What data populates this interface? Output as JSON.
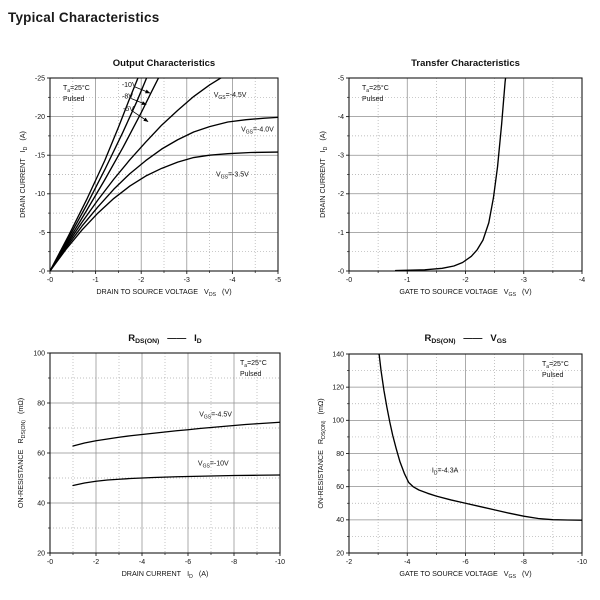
{
  "page": {
    "title": "Typical Characteristics"
  },
  "chart_data": [
    {
      "id": "output-characteristics",
      "type": "line",
      "title": "Output Characteristics",
      "xlabel": "DRAIN TO SOURCE VOLTAGE   V~DS~   (V)",
      "ylabel": "DRAIN CURRENT   I~D~   (A)",
      "xlim": [
        0,
        -5
      ],
      "ylim": [
        0,
        -25
      ],
      "xticks": [
        {
          "v": 0,
          "l": "-0"
        },
        {
          "v": -1,
          "l": "-1"
        },
        {
          "v": -2,
          "l": "-2"
        },
        {
          "v": -3,
          "l": "-3"
        },
        {
          "v": -4,
          "l": "-4"
        },
        {
          "v": -5,
          "l": "-5"
        }
      ],
      "yticks": [
        {
          "v": 0,
          "l": "-0"
        },
        {
          "v": -5,
          "l": "-5"
        },
        {
          "v": -10,
          "l": "-10"
        },
        {
          "v": -15,
          "l": "-15"
        },
        {
          "v": -20,
          "l": "-20"
        },
        {
          "v": -25,
          "l": "-25"
        }
      ],
      "xminor": 0.5,
      "yminor": 2.5,
      "grid": true,
      "legend": "none",
      "note": {
        "lines": [
          "T~a~=25°C",
          "Pulsed"
        ],
        "corner": "tl"
      },
      "series": [
        {
          "name": "VGS=-10V",
          "points": [
            [
              0,
              0
            ],
            [
              -0.4,
              -4.5
            ],
            [
              -0.8,
              -9.2
            ],
            [
              -1.2,
              -14.3
            ],
            [
              -1.5,
              -18.6
            ],
            [
              -1.75,
              -22.4
            ],
            [
              -1.97,
              -25.6
            ]
          ]
        },
        {
          "name": "VGS=-8V",
          "points": [
            [
              0,
              0
            ],
            [
              -0.4,
              -4.2
            ],
            [
              -0.8,
              -8.5
            ],
            [
              -1.2,
              -13.1
            ],
            [
              -1.6,
              -18.0
            ],
            [
              -1.9,
              -21.9
            ],
            [
              -2.16,
              -25.6
            ]
          ]
        },
        {
          "name": "VGS=-5V",
          "points": [
            [
              0,
              0
            ],
            [
              -0.4,
              -3.9
            ],
            [
              -0.8,
              -7.8
            ],
            [
              -1.2,
              -11.8
            ],
            [
              -1.6,
              -16.0
            ],
            [
              -2.0,
              -20.5
            ],
            [
              -2.2,
              -22.9
            ],
            [
              -2.43,
              -25.6
            ]
          ]
        },
        {
          "name": "VGS=-4.5V",
          "points": [
            [
              0,
              0
            ],
            [
              -0.35,
              -3.2
            ],
            [
              -0.7,
              -6.3
            ],
            [
              -1.05,
              -9.2
            ],
            [
              -1.4,
              -11.9
            ],
            [
              -1.75,
              -14.4
            ],
            [
              -2.1,
              -16.7
            ],
            [
              -2.45,
              -18.9
            ],
            [
              -2.8,
              -20.8
            ],
            [
              -3.15,
              -22.6
            ],
            [
              -3.5,
              -24.1
            ],
            [
              -3.8,
              -25.2
            ],
            [
              -4.0,
              -25.9
            ]
          ]
        },
        {
          "name": "VGS=-4.0V",
          "points": [
            [
              0,
              0
            ],
            [
              -0.35,
              -3.0
            ],
            [
              -0.7,
              -5.8
            ],
            [
              -1.05,
              -8.3
            ],
            [
              -1.4,
              -10.6
            ],
            [
              -1.75,
              -12.6
            ],
            [
              -2.1,
              -14.3
            ],
            [
              -2.45,
              -15.8
            ],
            [
              -2.8,
              -17.0
            ],
            [
              -3.15,
              -18.0
            ],
            [
              -3.5,
              -18.7
            ],
            [
              -3.9,
              -19.3
            ],
            [
              -4.3,
              -19.6
            ],
            [
              -4.7,
              -19.8
            ],
            [
              -5,
              -19.9
            ]
          ]
        },
        {
          "name": "VGS=-3.5V",
          "points": [
            [
              0,
              0
            ],
            [
              -0.35,
              -2.8
            ],
            [
              -0.7,
              -5.3
            ],
            [
              -1.05,
              -7.5
            ],
            [
              -1.4,
              -9.4
            ],
            [
              -1.75,
              -11.0
            ],
            [
              -2.1,
              -12.3
            ],
            [
              -2.45,
              -13.3
            ],
            [
              -2.8,
              -14.1
            ],
            [
              -3.15,
              -14.7
            ],
            [
              -3.5,
              -15.0
            ],
            [
              -3.9,
              -15.2
            ],
            [
              -4.4,
              -15.35
            ],
            [
              -5,
              -15.4
            ]
          ]
        }
      ],
      "labels": [
        {
          "text": "-10V",
          "x": -1.9,
          "y": -24.15,
          "anchor": "end",
          "arrow": [
            -1.86,
            -23.85,
            -2.19,
            -23.05
          ]
        },
        {
          "text": "-8V",
          "x": -1.82,
          "y": -22.65,
          "anchor": "end",
          "arrow": [
            -1.78,
            -22.35,
            -2.11,
            -21.55
          ]
        },
        {
          "text": "-5V",
          "x": -1.84,
          "y": -21.05,
          "anchor": "end",
          "arrow": [
            -1.8,
            -20.75,
            -2.15,
            -19.35
          ]
        },
        {
          "text": "V~GS~=-4.5V",
          "x": -3.95,
          "y": -22.85,
          "anchor": "middle"
        },
        {
          "text": "V~GS~=-4.0V",
          "x": -4.55,
          "y": -18.35,
          "anchor": "middle"
        },
        {
          "text": "V~GS~=-3.5V",
          "x": -4.0,
          "y": -12.55,
          "anchor": "middle"
        }
      ]
    },
    {
      "id": "transfer-characteristics",
      "type": "line",
      "title": "Transfer Characteristics",
      "xlabel": "GATE TO SOURCE VOLTAGE   V~GS~   (V)",
      "ylabel": "DRAIN CURRENT   I~D~   (A)",
      "xlim": [
        0,
        -4
      ],
      "ylim": [
        0,
        -5
      ],
      "xticks": [
        {
          "v": 0,
          "l": "-0"
        },
        {
          "v": -1,
          "l": "-1"
        },
        {
          "v": -2,
          "l": "-2"
        },
        {
          "v": -3,
          "l": "-3"
        },
        {
          "v": -4,
          "l": "-4"
        }
      ],
      "yticks": [
        {
          "v": 0,
          "l": "-0"
        },
        {
          "v": -1,
          "l": "-1"
        },
        {
          "v": -2,
          "l": "-2"
        },
        {
          "v": -3,
          "l": "-3"
        },
        {
          "v": -4,
          "l": "-4"
        },
        {
          "v": -5,
          "l": "-5"
        }
      ],
      "xminor": 0.5,
      "yminor": 0.5,
      "grid": true,
      "legend": "none",
      "note": {
        "lines": [
          "T~a~=25°C",
          "Pulsed"
        ],
        "corner": "tl"
      },
      "series": [
        {
          "name": "ID-vs-VGS",
          "points": [
            [
              -0.8,
              -0.01
            ],
            [
              -1.3,
              -0.03
            ],
            [
              -1.6,
              -0.07
            ],
            [
              -1.8,
              -0.13
            ],
            [
              -1.95,
              -0.22
            ],
            [
              -2.1,
              -0.38
            ],
            [
              -2.2,
              -0.55
            ],
            [
              -2.3,
              -0.8
            ],
            [
              -2.4,
              -1.25
            ],
            [
              -2.48,
              -1.9
            ],
            [
              -2.55,
              -2.7
            ],
            [
              -2.62,
              -3.8
            ],
            [
              -2.68,
              -4.9
            ],
            [
              -2.72,
              -5.4
            ]
          ]
        }
      ],
      "labels": []
    },
    {
      "id": "rdson-vs-id",
      "type": "line",
      "title": "R~DS(ON)~   ——   I~D~",
      "xlabel": "DRAIN CURRENT   I~D~   (A)",
      "ylabel": "ON-RESISTANCE   R~DS(ON)~   (mΩ)",
      "xlim": [
        0,
        -10
      ],
      "ylim": [
        20,
        100
      ],
      "xticks": [
        {
          "v": 0,
          "l": "-0"
        },
        {
          "v": -2,
          "l": "-2"
        },
        {
          "v": -4,
          "l": "-4"
        },
        {
          "v": -6,
          "l": "-6"
        },
        {
          "v": -8,
          "l": "-8"
        },
        {
          "v": -10,
          "l": "-10"
        }
      ],
      "yticks": [
        {
          "v": 20,
          "l": "20"
        },
        {
          "v": 40,
          "l": "40"
        },
        {
          "v": 60,
          "l": "60"
        },
        {
          "v": 80,
          "l": "80"
        },
        {
          "v": 100,
          "l": "100"
        }
      ],
      "xminor": 1,
      "yminor": 10,
      "grid": true,
      "legend": "none",
      "note": {
        "lines": [
          "T~a~=25°C",
          "Pulsed"
        ],
        "corner": "tr"
      },
      "series": [
        {
          "name": "VGS=-4.5V",
          "points": [
            [
              -1,
              62.8
            ],
            [
              -1.5,
              64
            ],
            [
              -2,
              64.9
            ],
            [
              -2.5,
              65.6
            ],
            [
              -3,
              66.3
            ],
            [
              -3.5,
              66.9
            ],
            [
              -4,
              67.4
            ],
            [
              -4.5,
              67.9
            ],
            [
              -5,
              68.4
            ],
            [
              -5.5,
              68.9
            ],
            [
              -6,
              69.3
            ],
            [
              -6.5,
              69.8
            ],
            [
              -7,
              70.2
            ],
            [
              -7.5,
              70.6
            ],
            [
              -8,
              71.0
            ],
            [
              -8.5,
              71.4
            ],
            [
              -9,
              71.7
            ],
            [
              -9.5,
              72.0
            ],
            [
              -10,
              72.3
            ]
          ]
        },
        {
          "name": "VGS=-10V",
          "points": [
            [
              -1,
              47
            ],
            [
              -1.5,
              48
            ],
            [
              -2,
              48.7
            ],
            [
              -2.5,
              49.2
            ],
            [
              -3,
              49.5
            ],
            [
              -3.5,
              49.8
            ],
            [
              -4,
              50.0
            ],
            [
              -4.5,
              50.2
            ],
            [
              -5,
              50.35
            ],
            [
              -5.5,
              50.5
            ],
            [
              -6,
              50.6
            ],
            [
              -6.5,
              50.7
            ],
            [
              -7,
              50.8
            ],
            [
              -7.5,
              50.9
            ],
            [
              -8,
              51.0
            ],
            [
              -9,
              51.1
            ],
            [
              -10,
              51.2
            ]
          ]
        }
      ],
      "labels": [
        {
          "text": "V~GS~=-4.5V",
          "x": -7.2,
          "y": 75.5,
          "anchor": "middle"
        },
        {
          "text": "V~GS~=-10V",
          "x": -7.1,
          "y": 56,
          "anchor": "middle"
        }
      ]
    },
    {
      "id": "rdson-vs-vgs",
      "type": "line",
      "title": "R~DS(ON)~   ——   V~GS~",
      "xlabel": "GATE TO SOURCE VOLTAGE   V~GS~   (V)",
      "ylabel": "ON-RESISTANCE   R~DS(ON)~   (mΩ)",
      "xlim": [
        -2,
        -10
      ],
      "ylim": [
        20,
        140
      ],
      "xticks": [
        {
          "v": -2,
          "l": "-2"
        },
        {
          "v": -4,
          "l": "-4"
        },
        {
          "v": -6,
          "l": "-6"
        },
        {
          "v": -8,
          "l": "-8"
        },
        {
          "v": -10,
          "l": "-10"
        }
      ],
      "yticks": [
        {
          "v": 20,
          "l": "20"
        },
        {
          "v": 40,
          "l": "40"
        },
        {
          "v": 60,
          "l": "60"
        },
        {
          "v": 80,
          "l": "80"
        },
        {
          "v": 100,
          "l": "100"
        },
        {
          "v": 120,
          "l": "120"
        },
        {
          "v": 140,
          "l": "140"
        }
      ],
      "xminor": 1,
      "yminor": 10,
      "grid": true,
      "legend": "none",
      "note": {
        "lines": [
          "T~a~=25°C",
          "Pulsed"
        ],
        "corner": "tr"
      },
      "series": [
        {
          "name": "ID=-4.3A",
          "points": [
            [
              -3.02,
              142
            ],
            [
              -3.1,
              130
            ],
            [
              -3.2,
              118
            ],
            [
              -3.3,
              108
            ],
            [
              -3.4,
              99
            ],
            [
              -3.5,
              91
            ],
            [
              -3.62,
              83
            ],
            [
              -3.75,
              75
            ],
            [
              -3.9,
              68
            ],
            [
              -4.05,
              62.5
            ],
            [
              -4.2,
              60
            ],
            [
              -4.4,
              58
            ],
            [
              -4.7,
              56
            ],
            [
              -5,
              54.3
            ],
            [
              -5.5,
              52
            ],
            [
              -6,
              50
            ],
            [
              -6.5,
              48
            ],
            [
              -7,
              46
            ],
            [
              -7.5,
              44
            ],
            [
              -8,
              42.2
            ],
            [
              -8.5,
              40.8
            ],
            [
              -9,
              40.1
            ],
            [
              -9.5,
              39.9
            ],
            [
              -10,
              39.8
            ]
          ]
        }
      ],
      "labels": [
        {
          "text": "I~D~=-4.3A",
          "x": -5.3,
          "y": 70,
          "anchor": "middle"
        }
      ]
    }
  ]
}
